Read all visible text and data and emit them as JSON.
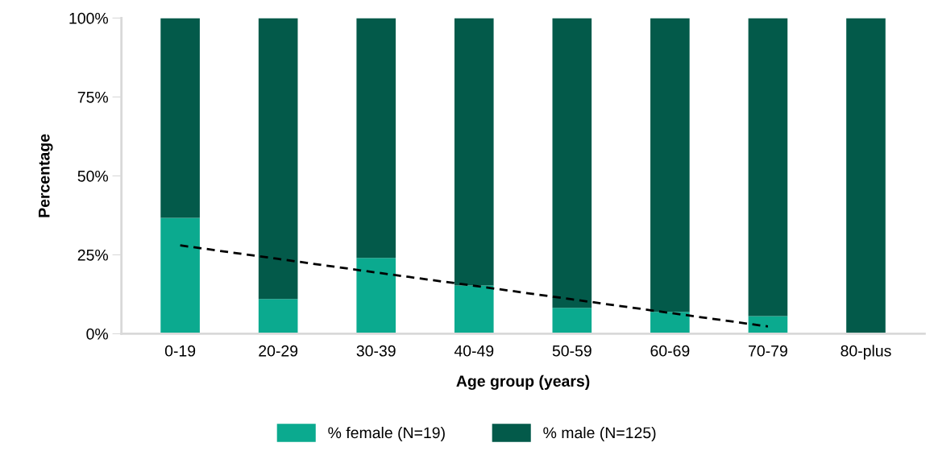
{
  "chart_data": {
    "type": "bar",
    "stacked": true,
    "xlabel": "Age group (years)",
    "ylabel": "Percentage",
    "categories": [
      "0-19",
      "20-29",
      "30-39",
      "40-49",
      "50-59",
      "60-69",
      "70-79",
      "80-plus"
    ],
    "series": [
      {
        "name": "% female (N=19)",
        "color": "#0baa8f",
        "values": [
          36.7,
          11.0,
          24.0,
          15.3,
          8.2,
          6.9,
          5.6,
          0
        ]
      },
      {
        "name": "% male (N=125)",
        "color": "#035a4a",
        "values": [
          63.3,
          89.0,
          76.0,
          84.7,
          91.8,
          93.1,
          94.4,
          100
        ]
      },
      {
        "type": "line",
        "color": "#000000",
        "line_style": "dashed",
        "x": [
          "0-19",
          "20-29",
          "30-39",
          "40-49",
          "50-59",
          "60-69",
          "70-79"
        ],
        "values": [
          28.0,
          23.7,
          19.4,
          15.2,
          10.9,
          6.6,
          2.3
        ]
      }
    ],
    "ylim": [
      0,
      100
    ],
    "yticks": [
      {
        "value": 0,
        "label": "0%"
      },
      {
        "value": 25,
        "label": "25%"
      },
      {
        "value": 50,
        "label": "50%"
      },
      {
        "value": 75,
        "label": "75%"
      },
      {
        "value": 100,
        "label": "100%"
      }
    ],
    "grid": false,
    "legend": "bottom"
  }
}
